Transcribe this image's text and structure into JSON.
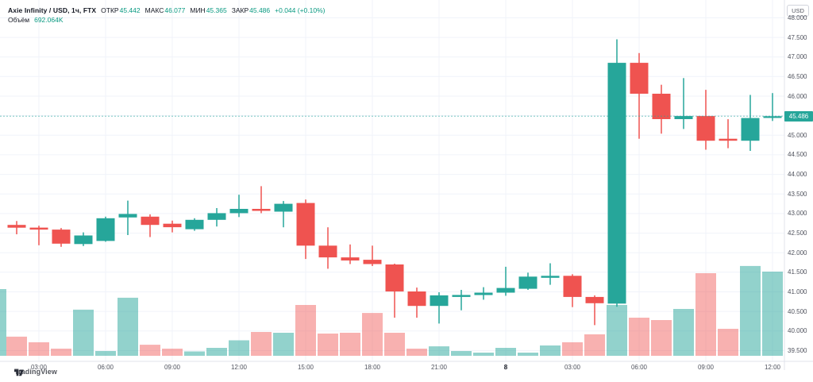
{
  "header": {
    "symbol_title": "Axie Infinity / USD, 1ч, FTX",
    "ohlc": {
      "open_label": "ОТКР",
      "open_value": "45.442",
      "high_label": "МАКС",
      "high_value": "46.077",
      "low_label": "МИН",
      "low_value": "45.365",
      "close_label": "ЗАКР",
      "close_value": "45.486",
      "change_value": "+0.044 (+0.10%)"
    },
    "volume_label": "Объём",
    "volume_value": "692.064K"
  },
  "price_axis": {
    "currency_button": "USD",
    "labels": [
      "48.000",
      "47.500",
      "47.000",
      "46.500",
      "46.000",
      "45.000",
      "44.500",
      "44.000",
      "43.500",
      "43.000",
      "42.500",
      "42.000",
      "41.500",
      "41.000",
      "40.500",
      "40.000",
      "39.500"
    ],
    "last_price_tag": "45.486"
  },
  "time_axis": {
    "ticks": [
      {
        "label": "03:00",
        "candle": 2
      },
      {
        "label": "06:00",
        "candle": 5
      },
      {
        "label": "09:00",
        "candle": 8
      },
      {
        "label": "12:00",
        "candle": 11
      },
      {
        "label": "15:00",
        "candle": 14
      },
      {
        "label": "18:00",
        "candle": 17
      },
      {
        "label": "21:00",
        "candle": 20
      },
      {
        "label": "8",
        "candle": 23,
        "bold": true
      },
      {
        "label": "03:00",
        "candle": 26
      },
      {
        "label": "06:00",
        "candle": 29
      },
      {
        "label": "09:00",
        "candle": 32
      },
      {
        "label": "12:00",
        "candle": 35
      }
    ]
  },
  "logo": {
    "text": "TradingView"
  },
  "colors": {
    "up": "#26a69a",
    "down": "#ef5350",
    "vol_up": "rgba(38,166,154,0.5)",
    "vol_down": "rgba(239,83,80,0.45)",
    "value_text": "#089981",
    "grid": "#f0f3fa",
    "axis_border": "#e0e3eb",
    "axis_text": "#50535e",
    "dark_text": "#131722",
    "tag_bg": "#26a69a",
    "last_price_line": "rgba(38,166,154,0.6)"
  },
  "chart_data": {
    "type": "candlestick",
    "title": "Axie Infinity / USD, 1ч, FTX",
    "legend_position": "top-left",
    "grid": true,
    "y_axis": {
      "min": 39.5,
      "max": 48.0,
      "step": 0.5,
      "unit": "USD"
    },
    "last_price": 45.486,
    "partial_first_volume_k": 548,
    "candles": [
      {
        "time": "02:00",
        "o": 42.71,
        "h": 42.81,
        "l": 42.47,
        "c": 42.64,
        "vol_k": 157
      },
      {
        "time": "03:00",
        "o": 42.64,
        "h": 42.69,
        "l": 42.19,
        "c": 42.59,
        "vol_k": 111
      },
      {
        "time": "04:00",
        "o": 42.59,
        "h": 42.63,
        "l": 42.15,
        "c": 42.23,
        "vol_k": 59
      },
      {
        "time": "05:00",
        "o": 42.22,
        "h": 42.52,
        "l": 42.17,
        "c": 42.44,
        "vol_k": 379
      },
      {
        "time": "06:00",
        "o": 42.3,
        "h": 42.92,
        "l": 42.28,
        "c": 42.88,
        "vol_k": 39
      },
      {
        "time": "07:00",
        "o": 42.9,
        "h": 43.33,
        "l": 42.45,
        "c": 42.99,
        "vol_k": 477
      },
      {
        "time": "08:00",
        "o": 42.92,
        "h": 42.98,
        "l": 42.4,
        "c": 42.71,
        "vol_k": 91
      },
      {
        "time": "09:00",
        "o": 42.74,
        "h": 42.82,
        "l": 42.52,
        "c": 42.65,
        "vol_k": 59
      },
      {
        "time": "10:00",
        "o": 42.6,
        "h": 42.88,
        "l": 42.56,
        "c": 42.84,
        "vol_k": 36
      },
      {
        "time": "11:00",
        "o": 42.84,
        "h": 43.14,
        "l": 42.67,
        "c": 43.01,
        "vol_k": 65
      },
      {
        "time": "12:00",
        "o": 43.01,
        "h": 43.48,
        "l": 42.91,
        "c": 43.12,
        "vol_k": 127
      },
      {
        "time": "13:00",
        "o": 43.12,
        "h": 43.7,
        "l": 43.01,
        "c": 43.07,
        "vol_k": 196
      },
      {
        "time": "14:00",
        "o": 43.05,
        "h": 43.32,
        "l": 42.65,
        "c": 43.25,
        "vol_k": 189
      },
      {
        "time": "15:00",
        "o": 43.27,
        "h": 43.36,
        "l": 41.84,
        "c": 42.18,
        "vol_k": 418
      },
      {
        "time": "16:00",
        "o": 42.18,
        "h": 42.65,
        "l": 41.59,
        "c": 41.88,
        "vol_k": 183
      },
      {
        "time": "17:00",
        "o": 41.88,
        "h": 42.21,
        "l": 41.71,
        "c": 41.8,
        "vol_k": 189
      },
      {
        "time": "18:00",
        "o": 41.82,
        "h": 42.18,
        "l": 41.66,
        "c": 41.71,
        "vol_k": 352
      },
      {
        "time": "19:00",
        "o": 41.7,
        "h": 41.72,
        "l": 40.34,
        "c": 41.01,
        "vol_k": 189
      },
      {
        "time": "20:00",
        "o": 41.01,
        "h": 41.11,
        "l": 40.34,
        "c": 40.64,
        "vol_k": 59
      },
      {
        "time": "21:00",
        "o": 40.64,
        "h": 40.99,
        "l": 40.19,
        "c": 40.91,
        "vol_k": 78
      },
      {
        "time": "22:00",
        "o": 40.87,
        "h": 41.05,
        "l": 40.53,
        "c": 40.92,
        "vol_k": 39
      },
      {
        "time": "23:00",
        "o": 40.92,
        "h": 41.12,
        "l": 40.8,
        "c": 40.98,
        "vol_k": 26
      },
      {
        "time": "00:00",
        "o": 40.98,
        "h": 41.64,
        "l": 40.9,
        "c": 41.1,
        "vol_k": 65
      },
      {
        "time": "01:00",
        "o": 41.08,
        "h": 41.49,
        "l": 41.05,
        "c": 41.39,
        "vol_k": 26
      },
      {
        "time": "02:00",
        "o": 41.36,
        "h": 41.73,
        "l": 41.18,
        "c": 41.41,
        "vol_k": 85
      },
      {
        "time": "03:00",
        "o": 41.41,
        "h": 41.45,
        "l": 40.61,
        "c": 40.87,
        "vol_k": 111
      },
      {
        "time": "04:00",
        "o": 40.87,
        "h": 40.91,
        "l": 40.15,
        "c": 40.71,
        "vol_k": 176
      },
      {
        "time": "05:00",
        "o": 40.7,
        "h": 47.45,
        "l": 40.62,
        "c": 46.85,
        "vol_k": 418
      },
      {
        "time": "06:00",
        "o": 46.85,
        "h": 47.1,
        "l": 44.91,
        "c": 46.06,
        "vol_k": 313
      },
      {
        "time": "07:00",
        "o": 46.06,
        "h": 46.29,
        "l": 45.04,
        "c": 45.41,
        "vol_k": 294
      },
      {
        "time": "08:00",
        "o": 45.41,
        "h": 46.46,
        "l": 45.16,
        "c": 45.49,
        "vol_k": 385
      },
      {
        "time": "09:00",
        "o": 45.49,
        "h": 46.16,
        "l": 44.63,
        "c": 44.86,
        "vol_k": 679
      },
      {
        "time": "10:00",
        "o": 44.91,
        "h": 45.41,
        "l": 44.67,
        "c": 44.86,
        "vol_k": 222
      },
      {
        "time": "11:00",
        "o": 44.86,
        "h": 46.03,
        "l": 44.6,
        "c": 45.44,
        "vol_k": 738
      },
      {
        "time": "12:00",
        "o": 45.442,
        "h": 46.077,
        "l": 45.365,
        "c": 45.486,
        "vol_k": 692.064
      }
    ]
  }
}
